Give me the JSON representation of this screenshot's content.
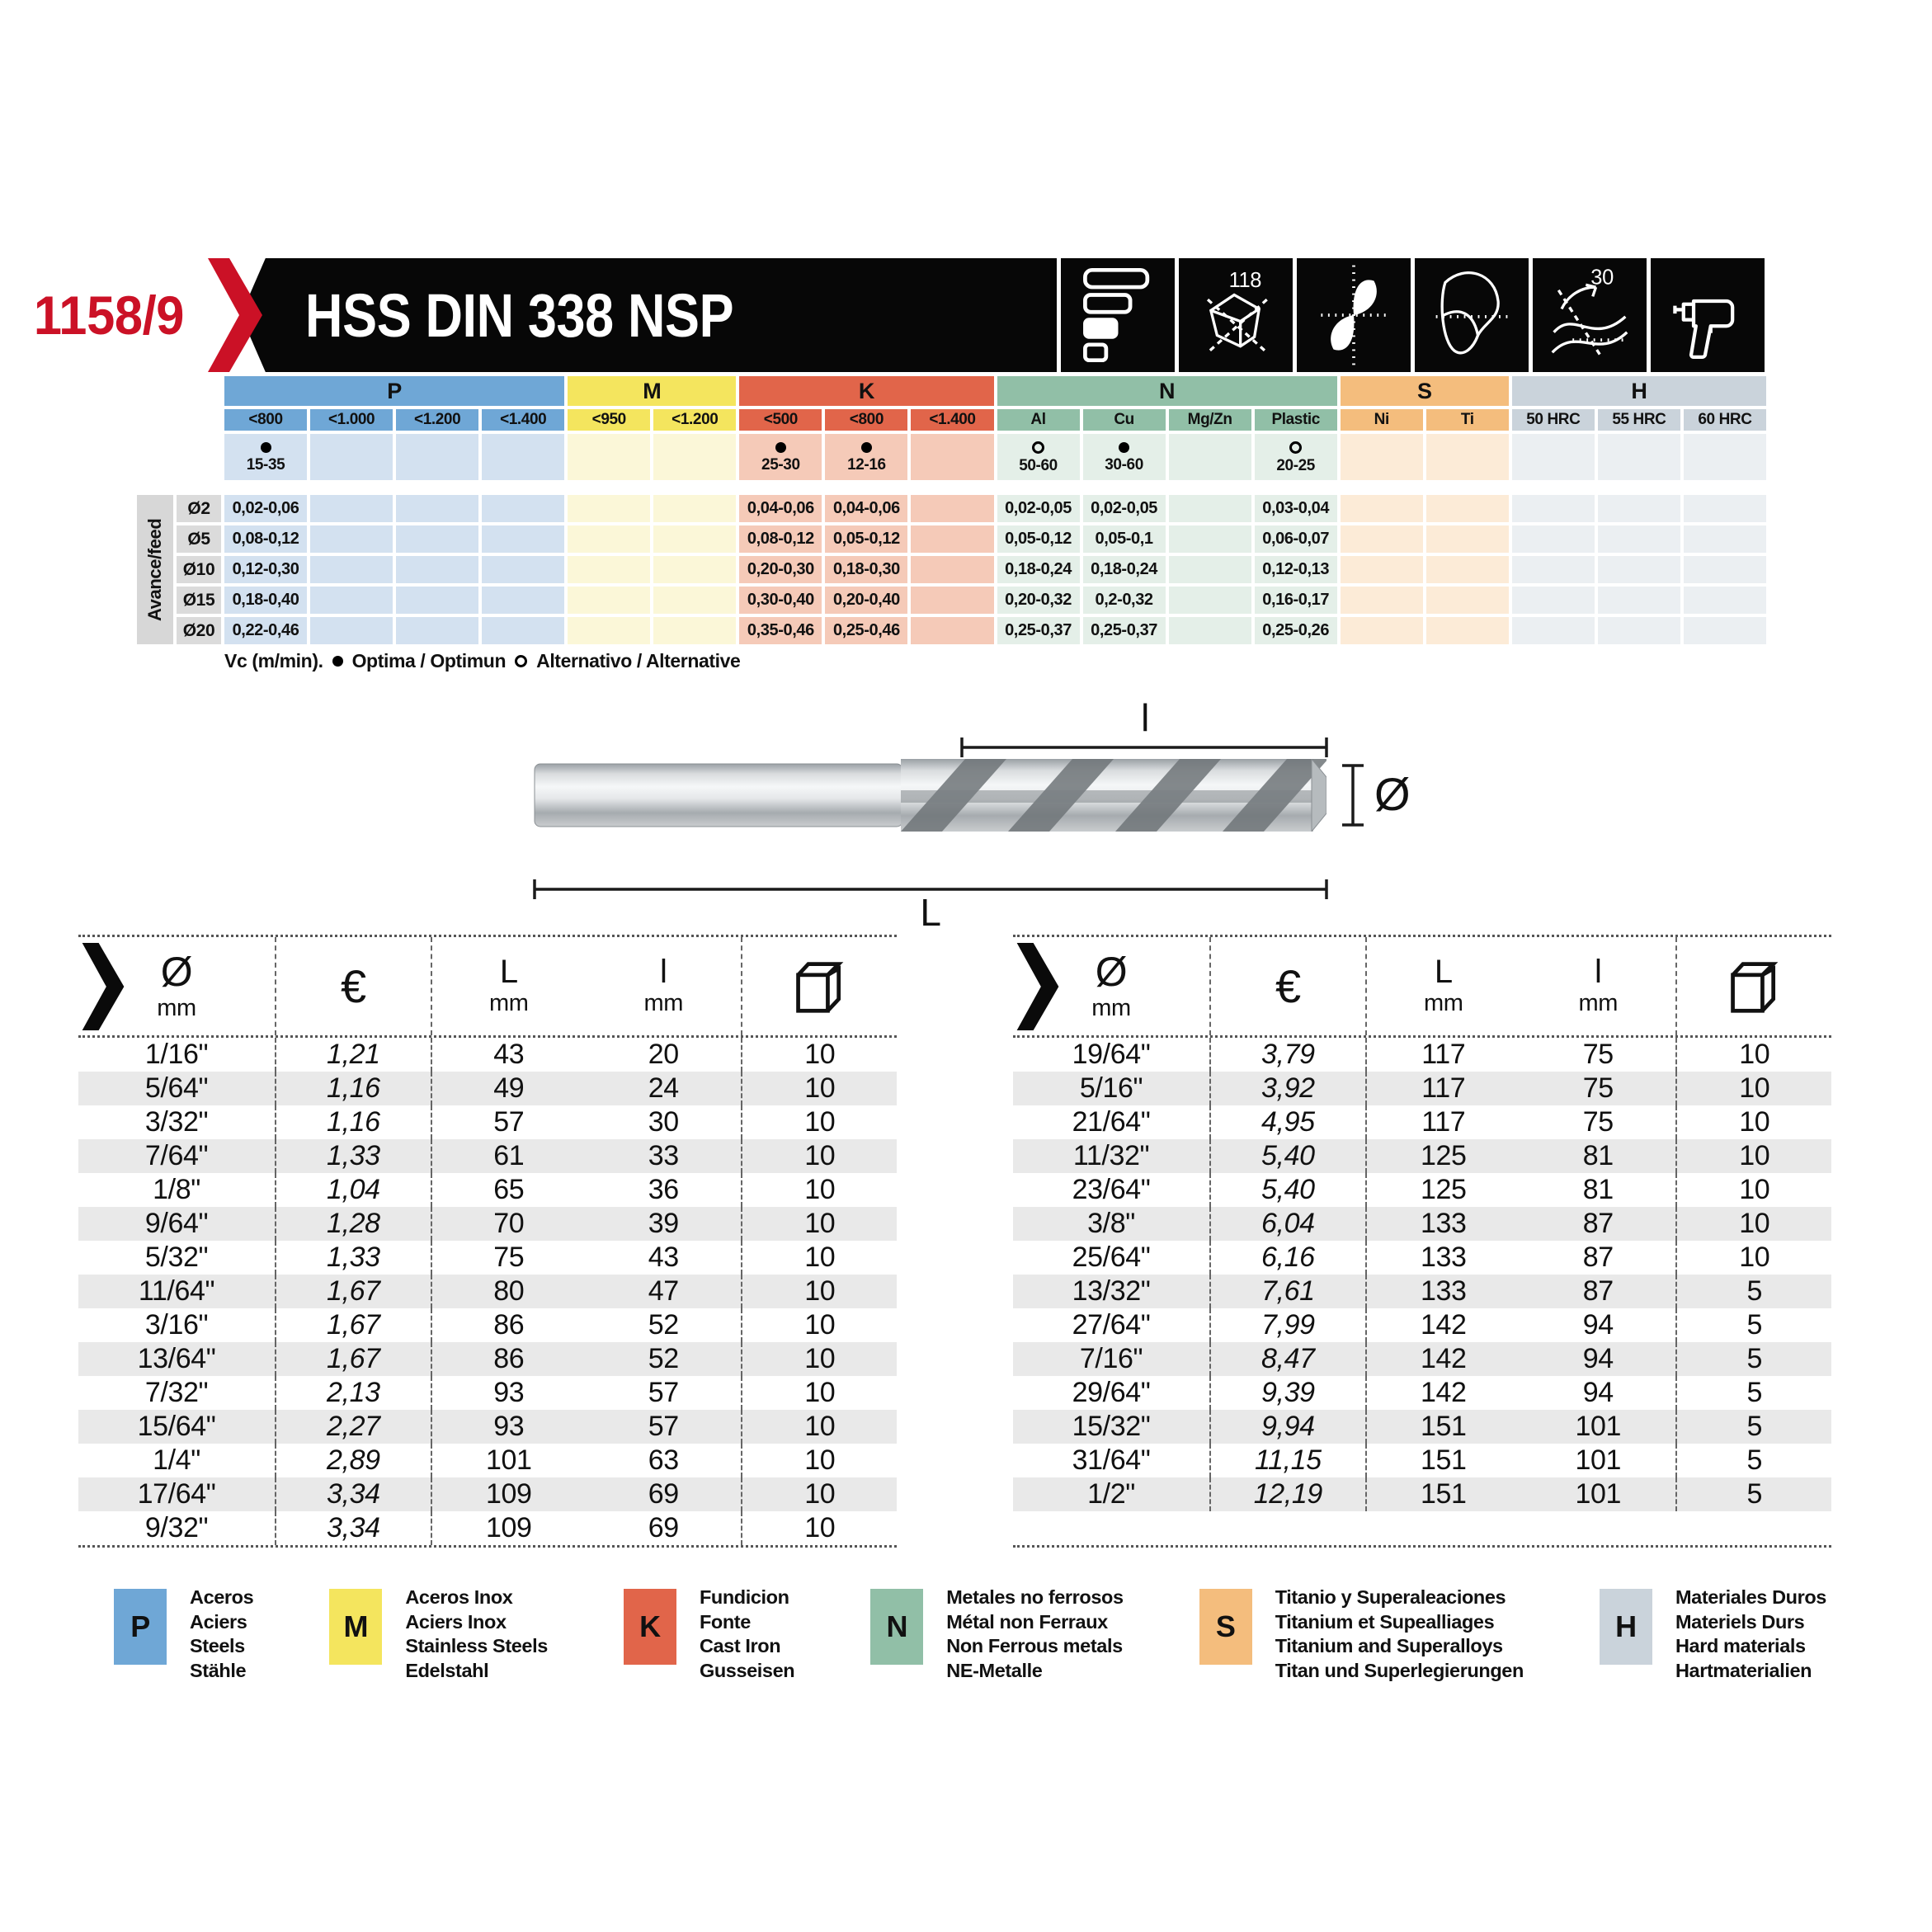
{
  "header": {
    "code": "1158/9",
    "title": "HSS DIN 338 NSP",
    "point_angle_label": "118",
    "helix_angle_label": "30"
  },
  "speed_table": {
    "side_label": "Avance/feed",
    "groups": [
      {
        "key": "P",
        "cols": [
          "<800",
          "<1.000",
          "<1.200",
          "<1.400"
        ]
      },
      {
        "key": "M",
        "cols": [
          "<950",
          "<1.200"
        ]
      },
      {
        "key": "K",
        "cols": [
          "<500",
          "<800",
          "<1.400"
        ]
      },
      {
        "key": "N",
        "cols": [
          "Al",
          "Cu",
          "Mg/Zn",
          "Plastic"
        ]
      },
      {
        "key": "S",
        "cols": [
          "Ni",
          "Ti"
        ]
      },
      {
        "key": "H",
        "cols": [
          "50 HRC",
          "55 HRC",
          "60 HRC"
        ]
      }
    ],
    "colors": {
      "P": {
        "header": "#6fa7d6",
        "tint": "#d3e1f0"
      },
      "M": {
        "header": "#f4e55e",
        "tint": "#fbf7d8"
      },
      "K": {
        "header": "#e1654a",
        "tint": "#f5cab8"
      },
      "N": {
        "header": "#91bfa7",
        "tint": "#e4efe8"
      },
      "S": {
        "header": "#f4bd7d",
        "tint": "#fcebd7"
      },
      "H": {
        "header": "#cad3db",
        "tint": "#ebeff2"
      }
    },
    "vc_row": [
      {
        "dot": "filled",
        "val": "15-35"
      },
      {},
      {},
      {},
      {},
      {},
      {
        "dot": "filled",
        "val": "25-30"
      },
      {
        "dot": "filled",
        "val": "12-16"
      },
      {},
      {
        "dot": "open",
        "val": "50-60"
      },
      {
        "dot": "filled",
        "val": "30-60"
      },
      {},
      {
        "dot": "open",
        "val": "20-25"
      },
      {},
      {},
      {},
      {},
      {}
    ],
    "rows": [
      {
        "dia": "Ø2",
        "vals": [
          "0,02-0,06",
          "",
          "",
          "",
          "",
          "",
          "0,04-0,06",
          "0,04-0,06",
          "",
          "0,02-0,05",
          "0,02-0,05",
          "",
          "0,03-0,04",
          "",
          "",
          "",
          "",
          ""
        ]
      },
      {
        "dia": "Ø5",
        "vals": [
          "0,08-0,12",
          "",
          "",
          "",
          "",
          "",
          "0,08-0,12",
          "0,05-0,12",
          "",
          "0,05-0,12",
          "0,05-0,1",
          "",
          "0,06-0,07",
          "",
          "",
          "",
          "",
          ""
        ]
      },
      {
        "dia": "Ø10",
        "vals": [
          "0,12-0,30",
          "",
          "",
          "",
          "",
          "",
          "0,20-0,30",
          "0,18-0,30",
          "",
          "0,18-0,24",
          "0,18-0,24",
          "",
          "0,12-0,13",
          "",
          "",
          "",
          "",
          ""
        ]
      },
      {
        "dia": "Ø15",
        "vals": [
          "0,18-0,40",
          "",
          "",
          "",
          "",
          "",
          "0,30-0,40",
          "0,20-0,40",
          "",
          "0,20-0,32",
          "0,2-0,32",
          "",
          "0,16-0,17",
          "",
          "",
          "",
          "",
          ""
        ]
      },
      {
        "dia": "Ø20",
        "vals": [
          "0,22-0,46",
          "",
          "",
          "",
          "",
          "",
          "0,35-0,46",
          "0,25-0,46",
          "",
          "0,25-0,37",
          "0,25-0,37",
          "",
          "0,25-0,26",
          "",
          "",
          "",
          "",
          ""
        ]
      }
    ],
    "legend": {
      "prefix": "Vc (m/min).",
      "optima": "Optima / Optimun",
      "alternative": "Alternativo / Alternative"
    }
  },
  "diagram": {
    "labels": {
      "flute_length": "l",
      "total_length": "L",
      "diameter": "Ø"
    }
  },
  "product_tables": {
    "headers": {
      "dia": "Ø",
      "dia_unit": "mm",
      "price": "€",
      "length": "L",
      "length_unit": "mm",
      "flute": "l",
      "flute_unit": "mm"
    },
    "left": [
      [
        "1/16\"",
        "1,21",
        "43",
        "20",
        "10"
      ],
      [
        "5/64\"",
        "1,16",
        "49",
        "24",
        "10"
      ],
      [
        "3/32\"",
        "1,16",
        "57",
        "30",
        "10"
      ],
      [
        "7/64\"",
        "1,33",
        "61",
        "33",
        "10"
      ],
      [
        "1/8\"",
        "1,04",
        "65",
        "36",
        "10"
      ],
      [
        "9/64\"",
        "1,28",
        "70",
        "39",
        "10"
      ],
      [
        "5/32\"",
        "1,33",
        "75",
        "43",
        "10"
      ],
      [
        "11/64\"",
        "1,67",
        "80",
        "47",
        "10"
      ],
      [
        "3/16\"",
        "1,67",
        "86",
        "52",
        "10"
      ],
      [
        "13/64\"",
        "1,67",
        "86",
        "52",
        "10"
      ],
      [
        "7/32\"",
        "2,13",
        "93",
        "57",
        "10"
      ],
      [
        "15/64\"",
        "2,27",
        "93",
        "57",
        "10"
      ],
      [
        "1/4\"",
        "2,89",
        "101",
        "63",
        "10"
      ],
      [
        "17/64\"",
        "3,34",
        "109",
        "69",
        "10"
      ],
      [
        "9/32\"",
        "3,34",
        "109",
        "69",
        "10"
      ]
    ],
    "right": [
      [
        "19/64\"",
        "3,79",
        "117",
        "75",
        "10"
      ],
      [
        "5/16\"",
        "3,92",
        "117",
        "75",
        "10"
      ],
      [
        "21/64\"",
        "4,95",
        "117",
        "75",
        "10"
      ],
      [
        "11/32\"",
        "5,40",
        "125",
        "81",
        "10"
      ],
      [
        "23/64\"",
        "5,40",
        "125",
        "81",
        "10"
      ],
      [
        "3/8\"",
        "6,04",
        "133",
        "87",
        "10"
      ],
      [
        "25/64\"",
        "6,16",
        "133",
        "87",
        "10"
      ],
      [
        "13/32\"",
        "7,61",
        "133",
        "87",
        "5"
      ],
      [
        "27/64\"",
        "7,99",
        "142",
        "94",
        "5"
      ],
      [
        "7/16\"",
        "8,47",
        "142",
        "94",
        "5"
      ],
      [
        "29/64\"",
        "9,39",
        "142",
        "94",
        "5"
      ],
      [
        "15/32\"",
        "9,94",
        "151",
        "101",
        "5"
      ],
      [
        "31/64\"",
        "11,15",
        "151",
        "101",
        "5"
      ],
      [
        "1/2\"",
        "12,19",
        "151",
        "101",
        "5"
      ]
    ]
  },
  "material_legend": [
    {
      "key": "P",
      "color": "#6fa7d6",
      "lines": [
        "Aceros",
        "Aciers",
        "Steels",
        "Stähle"
      ]
    },
    {
      "key": "M",
      "color": "#f4e55e",
      "lines": [
        "Aceros Inox",
        "Aciers Inox",
        "Stainless Steels",
        "Edelstahl"
      ]
    },
    {
      "key": "K",
      "color": "#e1654a",
      "lines": [
        "Fundicion",
        "Fonte",
        "Cast Iron",
        "Gusseisen"
      ]
    },
    {
      "key": "N",
      "color": "#91bfa7",
      "lines": [
        "Metales no ferrosos",
        "Métal non Ferraux",
        "Non Ferrous metals",
        "NE-Metalle"
      ]
    },
    {
      "key": "S",
      "color": "#f4bd7d",
      "lines": [
        "Titanio y Superaleaciones",
        "Titanium et Supealliages",
        "Titanium and Superalloys",
        "Titan und Superlegierungen"
      ]
    },
    {
      "key": "H",
      "color": "#cad3db",
      "lines": [
        "Materiales Duros",
        "Materiels Durs",
        "Hard materials",
        "Hartmaterialien"
      ]
    }
  ]
}
